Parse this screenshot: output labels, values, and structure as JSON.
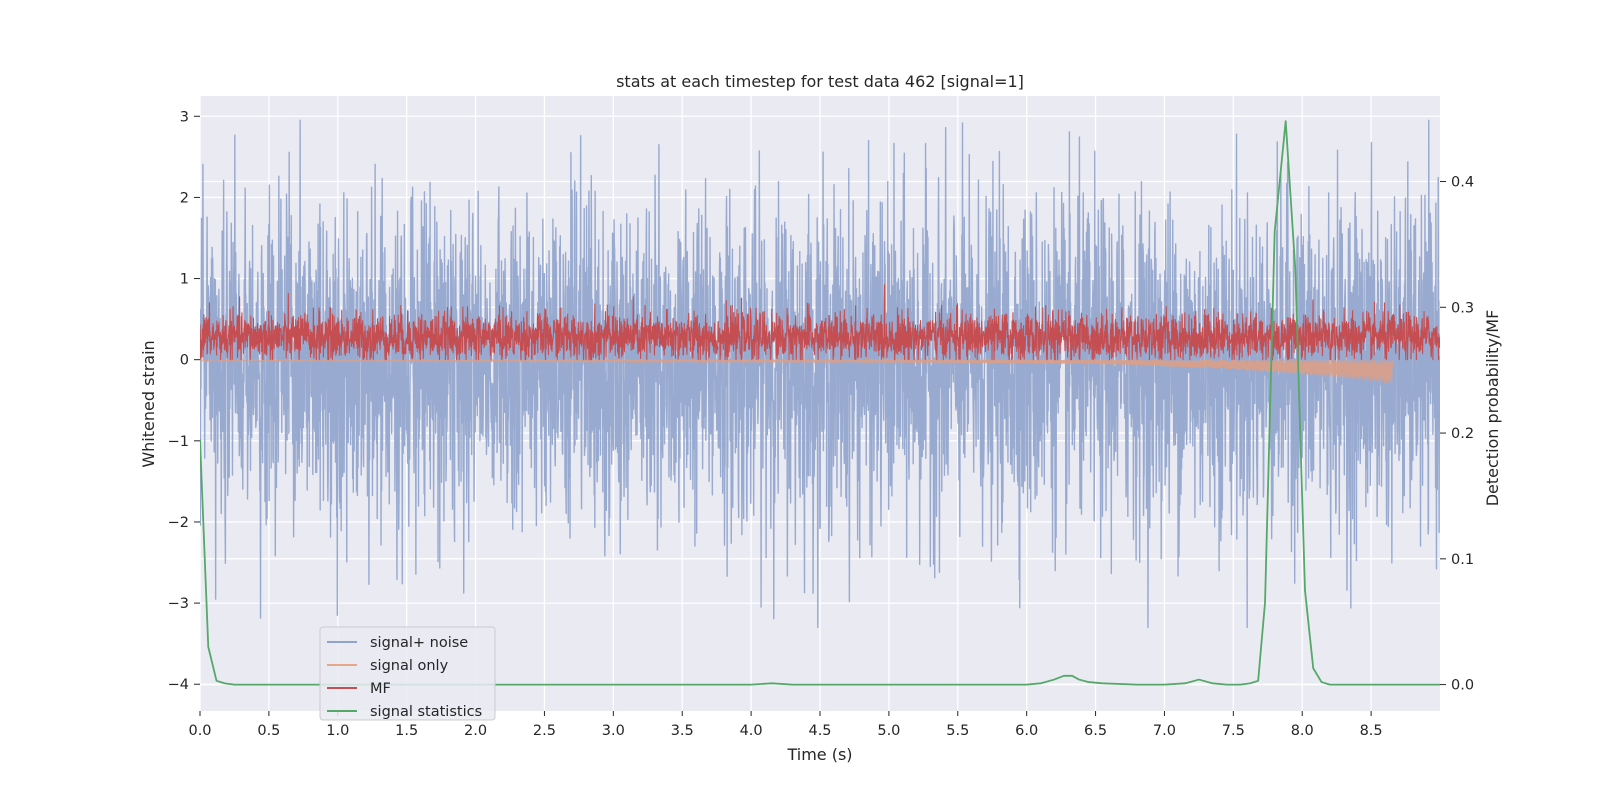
{
  "chart_data": {
    "type": "line",
    "title": "stats at each timestep for test data 462 [signal=1]",
    "xlabel": "Time (s)",
    "ylabel_left": "Whitened strain",
    "ylabel_right": "Detection probability/MF",
    "xlim": [
      0.0,
      9.0
    ],
    "ylim_left": [
      -4.33,
      3.25
    ],
    "ylim_right": [
      -0.021,
      0.468
    ],
    "x_ticks": [
      0.0,
      0.5,
      1.0,
      1.5,
      2.0,
      2.5,
      3.0,
      3.5,
      4.0,
      4.5,
      5.0,
      5.5,
      6.0,
      6.5,
      7.0,
      7.5,
      8.0,
      8.5
    ],
    "x_tick_labels": [
      "0.0",
      "0.5",
      "1.0",
      "1.5",
      "2.0",
      "2.5",
      "3.0",
      "3.5",
      "4.0",
      "4.5",
      "5.0",
      "5.5",
      "6.0",
      "6.5",
      "7.0",
      "7.5",
      "8.0",
      "8.5"
    ],
    "y_left_ticks": [
      -4,
      -3,
      -2,
      -1,
      0,
      1,
      2,
      3
    ],
    "y_left_tick_labels": [
      "−4",
      "−3",
      "−2",
      "−1",
      "0",
      "1",
      "2",
      "3"
    ],
    "y_right_ticks": [
      0.0,
      0.1,
      0.2,
      0.3,
      0.4
    ],
    "y_right_tick_labels": [
      "0.0",
      "0.1",
      "0.2",
      "0.3",
      "0.4"
    ],
    "grid": true,
    "legend_position": "lower-left",
    "legend": [
      {
        "label": "signal+ noise",
        "color": "#8fa3cc"
      },
      {
        "label": "signal only",
        "color": "#e5a88a"
      },
      {
        "label": "MF",
        "color": "#c44e52"
      },
      {
        "label": "signal statistics",
        "color": "#55a868"
      }
    ],
    "series": [
      {
        "name": "signal+ noise",
        "axis": "left",
        "kind": "noise",
        "color": "#98aacf",
        "mean": -0.05,
        "std": 1.0,
        "min": -3.3,
        "max": 2.95,
        "t_start": 0.0,
        "t_end": 9.0
      },
      {
        "name": "signal only",
        "axis": "left",
        "kind": "chirp",
        "color": "#dd9f86",
        "envelope_t": [
          0.0,
          5.0,
          6.5,
          7.3,
          7.9,
          8.4,
          8.65,
          8.66
        ],
        "envelope_a": [
          0.02,
          0.03,
          0.05,
          0.1,
          0.17,
          0.24,
          0.3,
          0.0
        ],
        "t_end": 8.66
      },
      {
        "name": "MF",
        "axis": "left",
        "kind": "band",
        "color": "#c44e52",
        "mean": 0.28,
        "std": 0.15,
        "min": 0.0,
        "max": 0.93,
        "t_start": 0.0,
        "t_end": 9.0
      },
      {
        "name": "signal statistics",
        "axis": "right",
        "kind": "line",
        "color": "#55a868",
        "x": [
          0.0,
          0.06,
          0.12,
          0.18,
          0.25,
          0.5,
          1.0,
          2.0,
          3.0,
          4.0,
          4.15,
          4.3,
          5.0,
          5.5,
          6.0,
          6.1,
          6.2,
          6.27,
          6.33,
          6.38,
          6.45,
          6.55,
          6.8,
          7.0,
          7.15,
          7.25,
          7.35,
          7.45,
          7.55,
          7.62,
          7.68,
          7.73,
          7.8,
          7.88,
          7.95,
          8.02,
          8.08,
          8.14,
          8.2,
          8.26,
          8.35,
          8.5,
          9.0
        ],
        "y": [
          0.195,
          0.03,
          0.003,
          0.001,
          0.0,
          0.0,
          0.0,
          0.0,
          0.0,
          0.0,
          0.001,
          0.0,
          0.0,
          0.0,
          0.0,
          0.001,
          0.004,
          0.007,
          0.007,
          0.004,
          0.002,
          0.001,
          0.0,
          0.0,
          0.001,
          0.004,
          0.001,
          0.0,
          0.0,
          0.001,
          0.003,
          0.065,
          0.36,
          0.448,
          0.33,
          0.075,
          0.013,
          0.002,
          0.0,
          0.0,
          0.0,
          0.0,
          0.0
        ]
      }
    ]
  }
}
